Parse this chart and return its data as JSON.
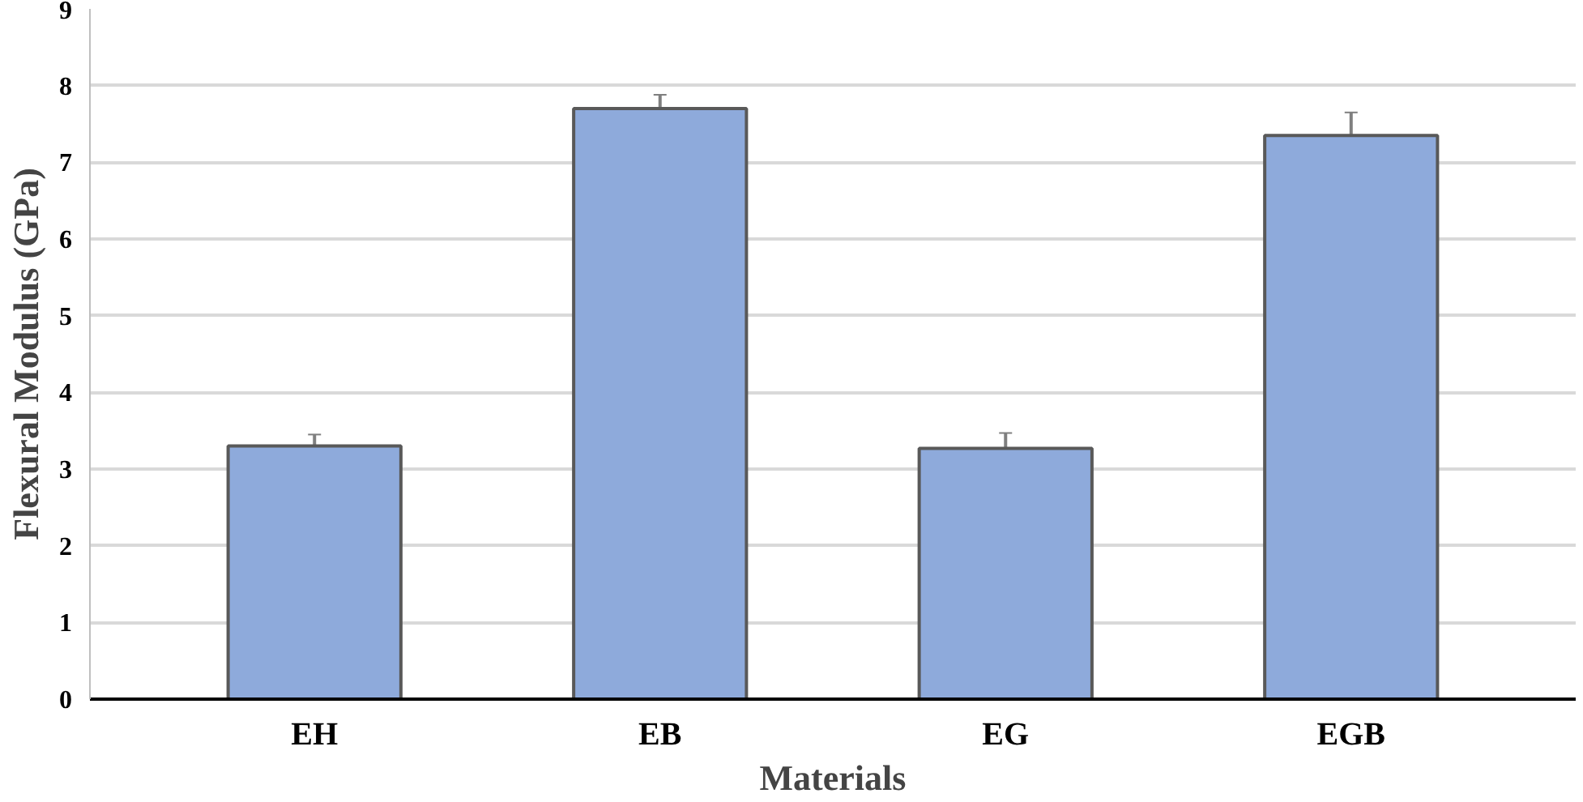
{
  "chart_data": {
    "type": "bar",
    "xlabel": "Materials",
    "ylabel": "Flexural Modulus (GPa)",
    "categories": [
      "EH",
      "EB",
      "EG",
      "EGB"
    ],
    "values": [
      3.3,
      7.7,
      3.27,
      7.35
    ],
    "errors": [
      0.15,
      0.18,
      0.2,
      0.3
    ],
    "color": "#8eaadb",
    "ylim": [
      0,
      9
    ],
    "yticks": [
      0,
      1,
      2,
      3,
      4,
      5,
      6,
      7,
      8,
      9
    ],
    "grid": "y"
  }
}
